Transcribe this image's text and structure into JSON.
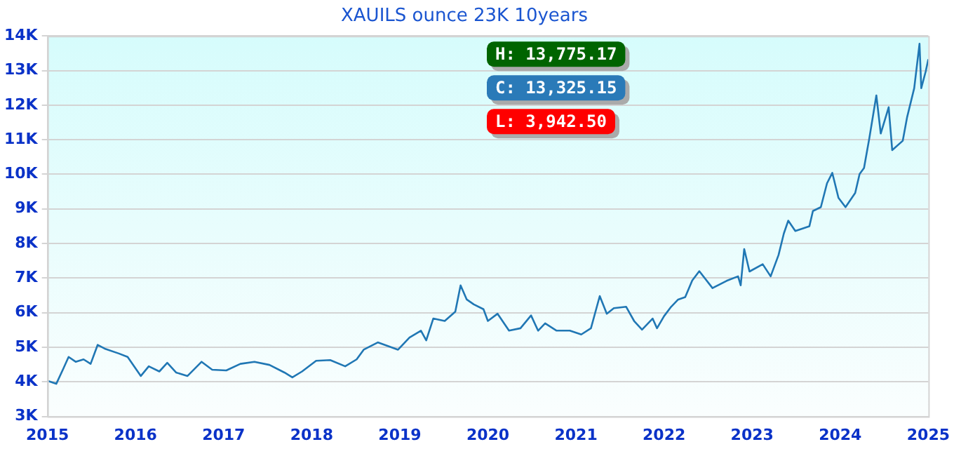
{
  "chart_data": {
    "type": "line",
    "title": "XAUILS ounce 23K 10years",
    "x": [
      2015.0,
      2015.1,
      2015.18,
      2015.24,
      2015.32,
      2015.41,
      2015.49,
      2015.57,
      2015.65,
      2015.81,
      2015.91,
      2016.06,
      2016.15,
      2016.27,
      2016.36,
      2016.46,
      2016.59,
      2016.75,
      2016.87,
      2017.03,
      2017.19,
      2017.35,
      2017.52,
      2017.69,
      2017.78,
      2017.89,
      2018.05,
      2018.21,
      2018.38,
      2018.51,
      2018.59,
      2018.75,
      2018.98,
      2019.11,
      2019.24,
      2019.3,
      2019.38,
      2019.51,
      2019.63,
      2019.69,
      2019.76,
      2019.84,
      2019.95,
      2020.0,
      2020.11,
      2020.24,
      2020.37,
      2020.49,
      2020.57,
      2020.65,
      2020.78,
      2020.93,
      2021.06,
      2021.17,
      2021.27,
      2021.35,
      2021.43,
      2021.57,
      2021.66,
      2021.75,
      2021.87,
      2021.92,
      2022.0,
      2022.08,
      2022.16,
      2022.24,
      2022.32,
      2022.4,
      2022.55,
      2022.71,
      2022.84,
      2022.87,
      2022.91,
      2022.97,
      2023.12,
      2023.21,
      2023.3,
      2023.36,
      2023.41,
      2023.49,
      2023.65,
      2023.69,
      2023.78,
      2023.85,
      2023.91,
      2023.98,
      2024.06,
      2024.17,
      2024.22,
      2024.27,
      2024.33,
      2024.41,
      2024.46,
      2024.55,
      2024.59,
      2024.71,
      2024.76,
      2024.84,
      2024.9,
      2024.92,
      2024.97,
      2025.0
    ],
    "series": [
      {
        "color": "#2077b4",
        "values": [
          4030,
          3943,
          4380,
          4720,
          4580,
          4650,
          4520,
          5070,
          4960,
          4820,
          4720,
          4170,
          4450,
          4300,
          4550,
          4270,
          4170,
          4580,
          4350,
          4330,
          4520,
          4580,
          4490,
          4270,
          4130,
          4300,
          4610,
          4630,
          4450,
          4650,
          4930,
          5140,
          4930,
          5280,
          5480,
          5200,
          5830,
          5760,
          6030,
          6790,
          6380,
          6240,
          6100,
          5760,
          5970,
          5480,
          5550,
          5920,
          5480,
          5690,
          5480,
          5480,
          5370,
          5550,
          6480,
          5970,
          6130,
          6170,
          5760,
          5510,
          5830,
          5550,
          5900,
          6170,
          6380,
          6450,
          6930,
          7200,
          6710,
          6920,
          7050,
          6790,
          7840,
          7190,
          7400,
          7050,
          7670,
          8290,
          8660,
          8360,
          8500,
          8940,
          9050,
          9740,
          10040,
          9320,
          9050,
          9460,
          10010,
          10180,
          11040,
          12280,
          11180,
          11940,
          10700,
          10970,
          11660,
          12490,
          13775,
          12490,
          12970,
          13325
        ]
      }
    ],
    "xlim": [
      2015,
      2025
    ],
    "xticks": [
      2015,
      2016,
      2017,
      2018,
      2019,
      2020,
      2021,
      2022,
      2023,
      2024,
      2025
    ],
    "ylim": [
      3000,
      14000
    ],
    "yticks": [
      {
        "value": 3000,
        "label": "3K"
      },
      {
        "value": 4000,
        "label": "4K"
      },
      {
        "value": 5000,
        "label": "5K"
      },
      {
        "value": 6000,
        "label": "6K"
      },
      {
        "value": 7000,
        "label": "7K"
      },
      {
        "value": 8000,
        "label": "8K"
      },
      {
        "value": 9000,
        "label": "9K"
      },
      {
        "value": 10000,
        "label": "10K"
      },
      {
        "value": 11000,
        "label": "11K"
      },
      {
        "value": 12000,
        "label": "12K"
      },
      {
        "value": 13000,
        "label": "13K"
      },
      {
        "value": 14000,
        "label": "14K"
      }
    ],
    "grid": "y",
    "marker": "none",
    "line_style": "solid",
    "annotations": [
      "H: 13,775.17",
      "C: 13,325.15",
      "L: 3,942.50"
    ]
  }
}
